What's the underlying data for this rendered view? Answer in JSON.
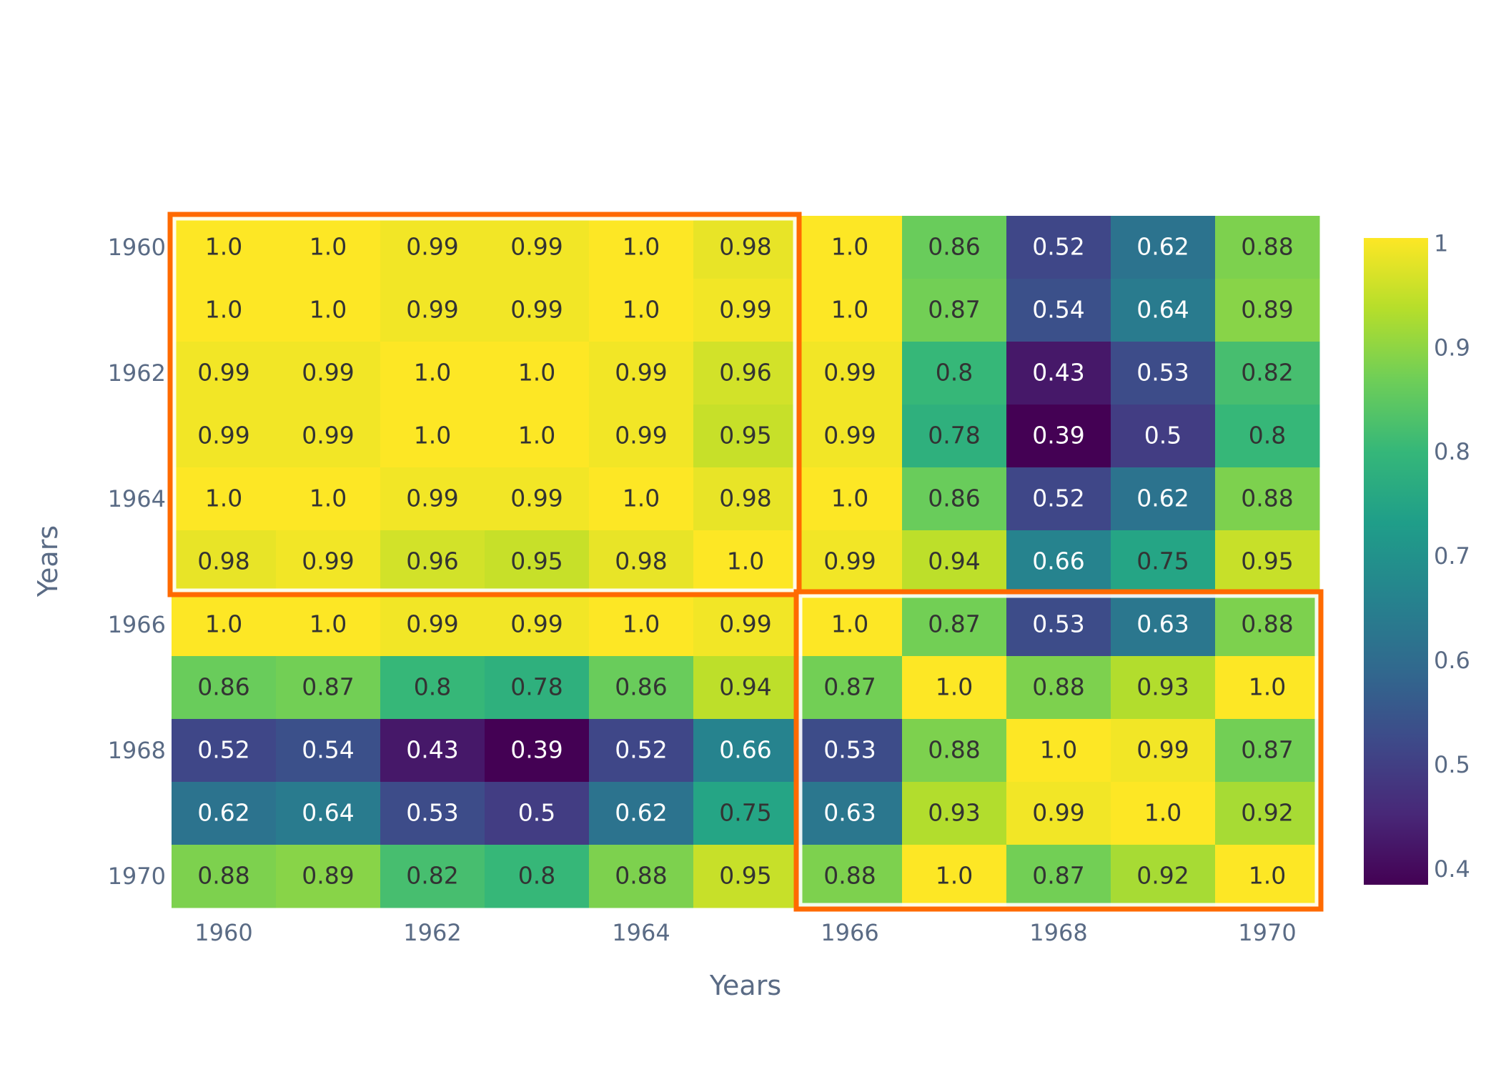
{
  "chart_data": {
    "type": "heatmap",
    "x": [
      1960,
      1961,
      1962,
      1963,
      1964,
      1965,
      1966,
      1967,
      1968,
      1969,
      1970
    ],
    "y": [
      1960,
      1961,
      1962,
      1963,
      1964,
      1965,
      1966,
      1967,
      1968,
      1969,
      1970
    ],
    "x_tick_labels": [
      "1960",
      "1962",
      "1964",
      "1966",
      "1968",
      "1970"
    ],
    "y_tick_labels": [
      "1960",
      "1962",
      "1964",
      "1966",
      "1968",
      "1970"
    ],
    "xlabel": "Years",
    "ylabel": "Years",
    "colorscale": "viridis",
    "zlim": [
      0.39,
      1.0
    ],
    "colorbar_ticks": [
      "1",
      "0.9",
      "0.8",
      "0.7",
      "0.6",
      "0.5",
      "0.4"
    ],
    "values": [
      [
        1.0,
        1.0,
        0.99,
        0.99,
        1.0,
        0.98,
        1.0,
        0.86,
        0.52,
        0.62,
        0.88
      ],
      [
        1.0,
        1.0,
        0.99,
        0.99,
        1.0,
        0.99,
        1.0,
        0.87,
        0.54,
        0.64,
        0.89
      ],
      [
        0.99,
        0.99,
        1.0,
        1.0,
        0.99,
        0.96,
        0.99,
        0.8,
        0.43,
        0.53,
        0.82
      ],
      [
        0.99,
        0.99,
        1.0,
        1.0,
        0.99,
        0.95,
        0.99,
        0.78,
        0.39,
        0.5,
        0.8
      ],
      [
        1.0,
        1.0,
        0.99,
        0.99,
        1.0,
        0.98,
        1.0,
        0.86,
        0.52,
        0.62,
        0.88
      ],
      [
        0.98,
        0.99,
        0.96,
        0.95,
        0.98,
        1.0,
        0.99,
        0.94,
        0.66,
        0.75,
        0.95
      ],
      [
        1.0,
        1.0,
        0.99,
        0.99,
        1.0,
        0.99,
        1.0,
        0.87,
        0.53,
        0.63,
        0.88
      ],
      [
        0.86,
        0.87,
        0.8,
        0.78,
        0.86,
        0.94,
        0.87,
        1.0,
        0.88,
        0.93,
        1.0
      ],
      [
        0.52,
        0.54,
        0.43,
        0.39,
        0.52,
        0.66,
        0.53,
        0.88,
        1.0,
        0.99,
        0.87
      ],
      [
        0.62,
        0.64,
        0.53,
        0.5,
        0.62,
        0.75,
        0.63,
        0.93,
        0.99,
        1.0,
        0.92
      ],
      [
        0.88,
        0.89,
        0.82,
        0.8,
        0.88,
        0.95,
        0.88,
        1.0,
        0.87,
        0.92,
        1.0
      ]
    ],
    "value_labels": [
      [
        "1.0",
        "1.0",
        "0.99",
        "0.99",
        "1.0",
        "0.98",
        "1.0",
        "0.86",
        "0.52",
        "0.62",
        "0.88"
      ],
      [
        "1.0",
        "1.0",
        "0.99",
        "0.99",
        "1.0",
        "0.99",
        "1.0",
        "0.87",
        "0.54",
        "0.64",
        "0.89"
      ],
      [
        "0.99",
        "0.99",
        "1.0",
        "1.0",
        "0.99",
        "0.96",
        "0.99",
        "0.8",
        "0.43",
        "0.53",
        "0.82"
      ],
      [
        "0.99",
        "0.99",
        "1.0",
        "1.0",
        "0.99",
        "0.95",
        "0.99",
        "0.78",
        "0.39",
        "0.5",
        "0.8"
      ],
      [
        "1.0",
        "1.0",
        "0.99",
        "0.99",
        "1.0",
        "0.98",
        "1.0",
        "0.86",
        "0.52",
        "0.62",
        "0.88"
      ],
      [
        "0.98",
        "0.99",
        "0.96",
        "0.95",
        "0.98",
        "1.0",
        "0.99",
        "0.94",
        "0.66",
        "0.75",
        "0.95"
      ],
      [
        "1.0",
        "1.0",
        "0.99",
        "0.99",
        "1.0",
        "0.99",
        "1.0",
        "0.87",
        "0.53",
        "0.63",
        "0.88"
      ],
      [
        "0.86",
        "0.87",
        "0.8",
        "0.78",
        "0.86",
        "0.94",
        "0.87",
        "1.0",
        "0.88",
        "0.93",
        "1.0"
      ],
      [
        "0.52",
        "0.54",
        "0.43",
        "0.39",
        "0.52",
        "0.66",
        "0.53",
        "0.88",
        "1.0",
        "0.99",
        "0.87"
      ],
      [
        "0.62",
        "0.64",
        "0.53",
        "0.5",
        "0.62",
        "0.75",
        "0.63",
        "0.93",
        "0.99",
        "1.0",
        "0.92"
      ],
      [
        "0.88",
        "0.89",
        "0.82",
        "0.8",
        "0.88",
        "0.95",
        "0.88",
        "1.0",
        "0.87",
        "0.92",
        "1.0"
      ]
    ],
    "highlight_boxes": [
      {
        "x_range": [
          1960,
          1965
        ],
        "y_range": [
          1960,
          1965
        ],
        "color": "#ff6a00"
      },
      {
        "x_range": [
          1966,
          1970
        ],
        "y_range": [
          1966,
          1970
        ],
        "color": "#ff6a00"
      }
    ],
    "grid": false
  }
}
